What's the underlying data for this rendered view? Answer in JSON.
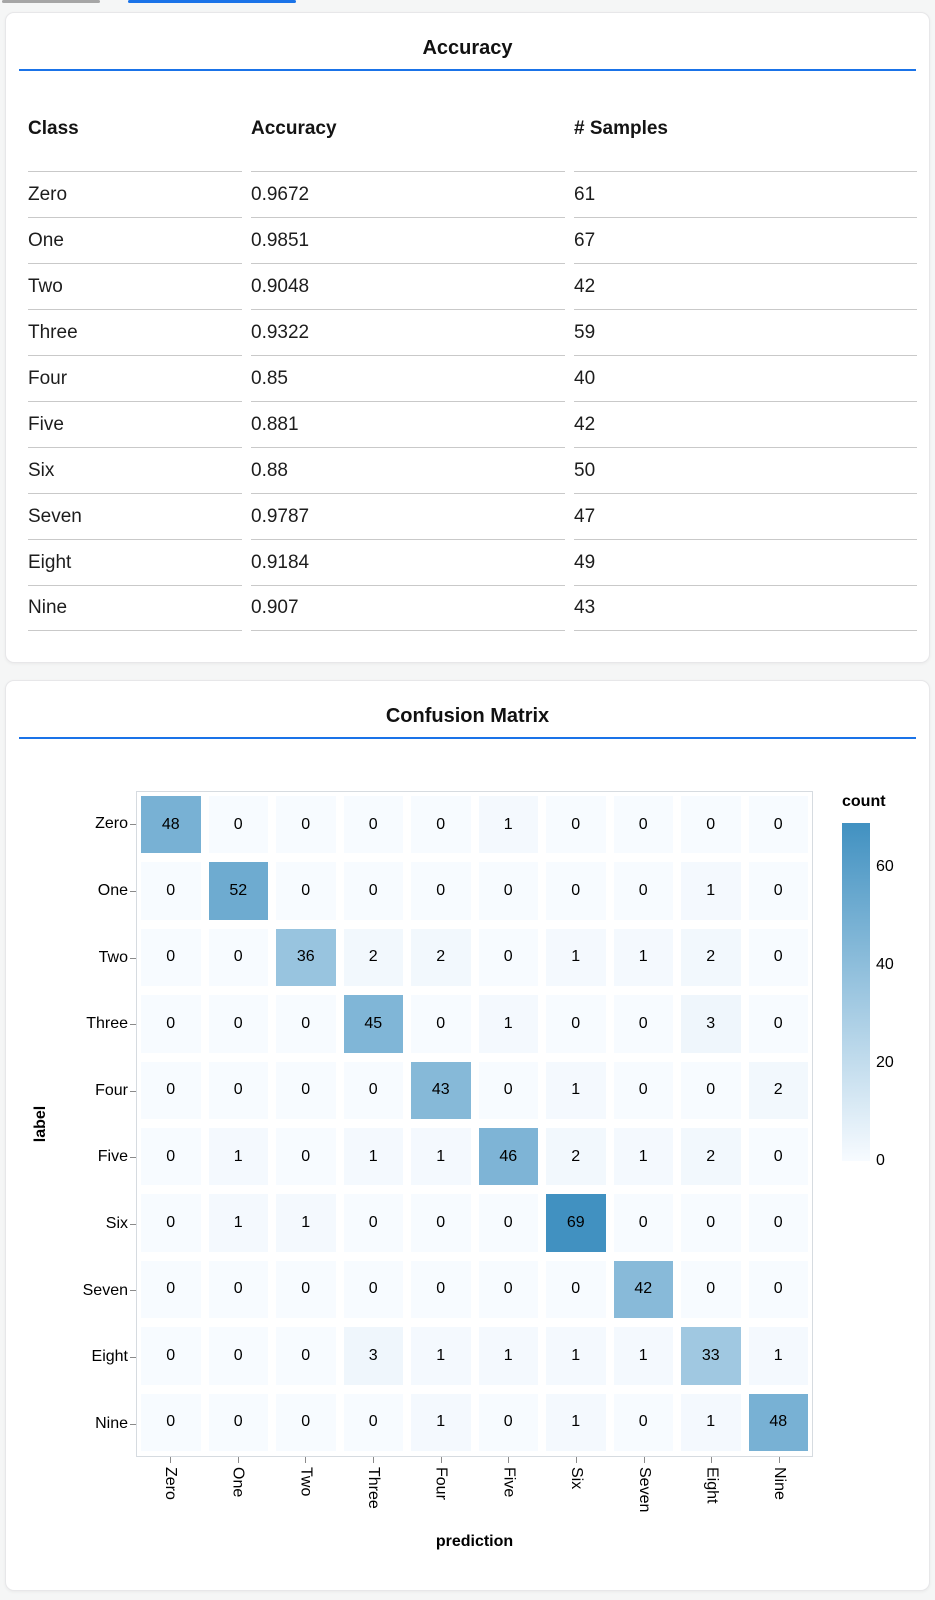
{
  "tabs": {
    "inactive_color": "#a6a6a6",
    "active_color": "#1a73e8"
  },
  "accent_color": "#1a73e8",
  "accuracy_card": {
    "title": "Accuracy"
  },
  "confusion_card": {
    "title": "Confusion Matrix"
  },
  "chart_data": [
    {
      "type": "table",
      "title": "Accuracy",
      "columns": [
        "Class",
        "Accuracy",
        "# Samples"
      ],
      "rows": [
        [
          "Zero",
          "0.9672",
          "61"
        ],
        [
          "One",
          "0.9851",
          "67"
        ],
        [
          "Two",
          "0.9048",
          "42"
        ],
        [
          "Three",
          "0.9322",
          "59"
        ],
        [
          "Four",
          "0.85",
          "40"
        ],
        [
          "Five",
          "0.881",
          "42"
        ],
        [
          "Six",
          "0.88",
          "50"
        ],
        [
          "Seven",
          "0.9787",
          "47"
        ],
        [
          "Eight",
          "0.9184",
          "49"
        ],
        [
          "Nine",
          "0.907",
          "43"
        ]
      ]
    },
    {
      "type": "heatmap",
      "title": "Confusion Matrix",
      "xlabel": "prediction",
      "ylabel": "label",
      "categories": [
        "Zero",
        "One",
        "Two",
        "Three",
        "Four",
        "Five",
        "Six",
        "Seven",
        "Eight",
        "Nine"
      ],
      "matrix": [
        [
          48,
          0,
          0,
          0,
          0,
          1,
          0,
          0,
          0,
          0
        ],
        [
          0,
          52,
          0,
          0,
          0,
          0,
          0,
          0,
          1,
          0
        ],
        [
          0,
          0,
          36,
          2,
          2,
          0,
          1,
          1,
          2,
          0
        ],
        [
          0,
          0,
          0,
          45,
          0,
          1,
          0,
          0,
          3,
          0
        ],
        [
          0,
          0,
          0,
          0,
          43,
          0,
          1,
          0,
          0,
          2
        ],
        [
          0,
          1,
          0,
          1,
          1,
          46,
          2,
          1,
          2,
          0
        ],
        [
          0,
          1,
          1,
          0,
          0,
          0,
          69,
          0,
          0,
          0
        ],
        [
          0,
          0,
          0,
          0,
          0,
          0,
          0,
          42,
          0,
          0
        ],
        [
          0,
          0,
          0,
          3,
          1,
          1,
          1,
          1,
          33,
          1
        ],
        [
          0,
          0,
          0,
          0,
          1,
          0,
          1,
          0,
          1,
          48
        ]
      ],
      "legend": {
        "title": "count",
        "ticks": [
          0,
          20,
          40,
          60
        ],
        "domain": [
          0,
          69
        ],
        "color_low": "#f7fbff",
        "color_high": "#4191c1"
      },
      "grid": false,
      "legend_position": "right"
    }
  ]
}
